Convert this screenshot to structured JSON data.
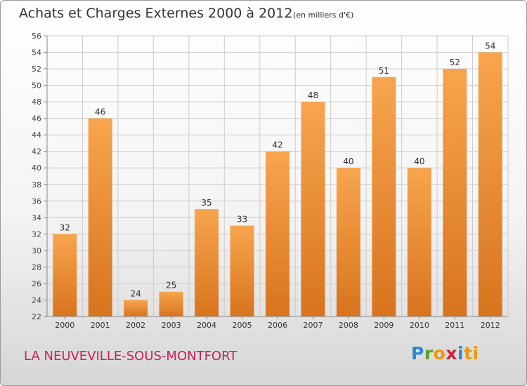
{
  "header": {
    "title": "Achats et Charges Externes 2000 à 2012",
    "unit": "(en milliers d'€)"
  },
  "footer": {
    "city": "LA NEUVEVILLE-SOUS-MONTFORT",
    "brand_letters": [
      "P",
      "r",
      "o",
      "x",
      "i",
      "ti"
    ]
  },
  "colors": {
    "bar_light": "#f7a54e",
    "bar_dark": "#d8741e",
    "grid": "#cccccc",
    "city_text": "#c8205a"
  },
  "chart_data": {
    "type": "bar",
    "title": "Achats et Charges Externes 2000 à 2012",
    "xlabel": "",
    "ylabel": "",
    "categories": [
      "2000",
      "2001",
      "2002",
      "2003",
      "2004",
      "2005",
      "2006",
      "2007",
      "2008",
      "2009",
      "2010",
      "2011",
      "2012"
    ],
    "values": [
      32,
      46,
      24,
      25,
      35,
      33,
      42,
      48,
      40,
      51,
      40,
      52,
      54
    ],
    "ylim": [
      22,
      56
    ],
    "yticks": [
      22,
      24,
      26,
      28,
      30,
      32,
      34,
      36,
      38,
      40,
      42,
      44,
      46,
      48,
      50,
      52,
      54,
      56
    ],
    "grid": true,
    "data_labels": true
  }
}
